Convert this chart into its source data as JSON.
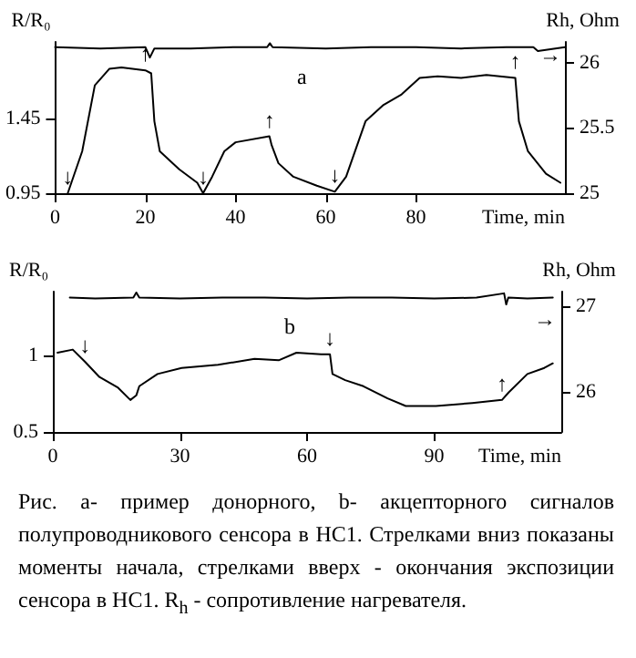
{
  "chart_data": [
    {
      "type": "line",
      "ylabel": "R/R₀",
      "y2label": "Rh, Ohm",
      "xlabel": "Time, min",
      "xlim": [
        0,
        113
      ],
      "xticks": [
        0,
        20,
        40,
        60,
        80
      ],
      "ylim": [
        0.95,
        1.96
      ],
      "yticks": [
        0.95,
        1.45
      ],
      "y2lim": [
        25,
        26.16
      ],
      "y2ticks": [
        25,
        25.5,
        26
      ],
      "grid": false,
      "marker": "none",
      "line_style": "solid",
      "series": [
        {
          "color": "#000000",
          "x": [
            2.8,
            6,
            8.8,
            12,
            14.7,
            20,
            21.3,
            22,
            23.2,
            27.5,
            31.5,
            32.8,
            34.8,
            37.5,
            40,
            47.5,
            48,
            49.5,
            52.8,
            58,
            62,
            64.5,
            68.8,
            72.8,
            76.8,
            80.8,
            84.8,
            90,
            95.6,
            102,
            102.8,
            104.8,
            108.8,
            112
          ],
          "values": [
            0.95,
            1.23,
            1.67,
            1.78,
            1.79,
            1.77,
            1.75,
            1.43,
            1.23,
            1.11,
            1.02,
            0.95,
            1.06,
            1.23,
            1.29,
            1.33,
            1.27,
            1.15,
            1.06,
            1.0,
            0.96,
            1.06,
            1.43,
            1.54,
            1.61,
            1.72,
            1.73,
            1.72,
            1.74,
            1.72,
            1.43,
            1.23,
            1.08,
            1.02
          ]
        },
        {
          "color": "#000000",
          "axis": "y2",
          "x": [
            0,
            10,
            20,
            21,
            22,
            30,
            40,
            47,
            47.6,
            48.2,
            60,
            70,
            80,
            90,
            100,
            106,
            107,
            113
          ],
          "values": [
            26.12,
            26.11,
            26.12,
            26.04,
            26.11,
            26.11,
            26.12,
            26.12,
            26.15,
            26.12,
            26.11,
            26.12,
            26.12,
            26.11,
            26.12,
            26.12,
            26.09,
            26.12
          ]
        }
      ],
      "annotations": [
        {
          "text": "↓",
          "x": 2.8,
          "y": 0.95
        },
        {
          "text": "↑",
          "x": 20,
          "y": 1.77
        },
        {
          "text": "↓",
          "x": 32.8,
          "y": 0.95
        },
        {
          "text": "↑",
          "x": 47.5,
          "y": 1.33
        },
        {
          "text": "↓",
          "x": 62,
          "y": 0.96
        },
        {
          "text": "↑",
          "x": 102,
          "y": 1.72
        },
        "a",
        "→"
      ]
    },
    {
      "type": "line",
      "ylabel": "R/R₀",
      "y2label": "Rh, Ohm",
      "xlabel": "Time, min",
      "xlim": [
        0,
        120
      ],
      "xticks": [
        0,
        30,
        60,
        90
      ],
      "ylim": [
        0.5,
        1.42
      ],
      "yticks": [
        0.5,
        1
      ],
      "y2lim": [
        25.53,
        27.17
      ],
      "y2ticks": [
        26,
        27
      ],
      "grid": false,
      "marker": "none",
      "line_style": "solid",
      "series": [
        {
          "color": "#000000",
          "x": [
            1.1,
            4.7,
            7.6,
            11,
            15.4,
            18.3,
            19.7,
            20.4,
            24.7,
            30.4,
            39,
            47.6,
            53.3,
            57.5,
            63.3,
            65.4,
            66,
            69,
            73.3,
            79,
            83.3,
            90.4,
            99,
            106,
            107.6,
            112,
            116,
            118
          ],
          "values": [
            1.02,
            1.04,
            0.96,
            0.86,
            0.79,
            0.71,
            0.74,
            0.8,
            0.88,
            0.92,
            0.94,
            0.98,
            0.97,
            1.02,
            1.01,
            1.01,
            0.88,
            0.84,
            0.8,
            0.72,
            0.67,
            0.67,
            0.69,
            0.71,
            0.76,
            0.88,
            0.92,
            0.95
          ]
        },
        {
          "color": "#000000",
          "axis": "y2",
          "x": [
            4,
            10,
            19,
            19.7,
            20.4,
            30,
            40,
            50,
            60,
            70,
            80,
            90,
            100,
            106.5,
            107,
            107.5,
            112,
            118
          ],
          "values": [
            27.1,
            27.09,
            27.1,
            27.16,
            27.1,
            27.09,
            27.1,
            27.1,
            27.09,
            27.1,
            27.1,
            27.09,
            27.1,
            27.15,
            27.02,
            27.1,
            27.09,
            27.1
          ]
        }
      ],
      "annotations": [
        {
          "text": "↓",
          "x": 7.6,
          "y": 0.96
        },
        {
          "text": "↓",
          "x": 65.4,
          "y": 1.01
        },
        {
          "text": "↑",
          "x": 106,
          "y": 0.71
        },
        "b",
        "→",
        "Рис. а- пример донорного, b- акцепторного сигналов полупроводникового сенсора в HC1. Стрелками вниз показаны моменты начала, стрелками вверх - окончания экспозиции сенсора в HC1. R$_{h}$ - сопротивление нагревателя."
      ]
    }
  ]
}
